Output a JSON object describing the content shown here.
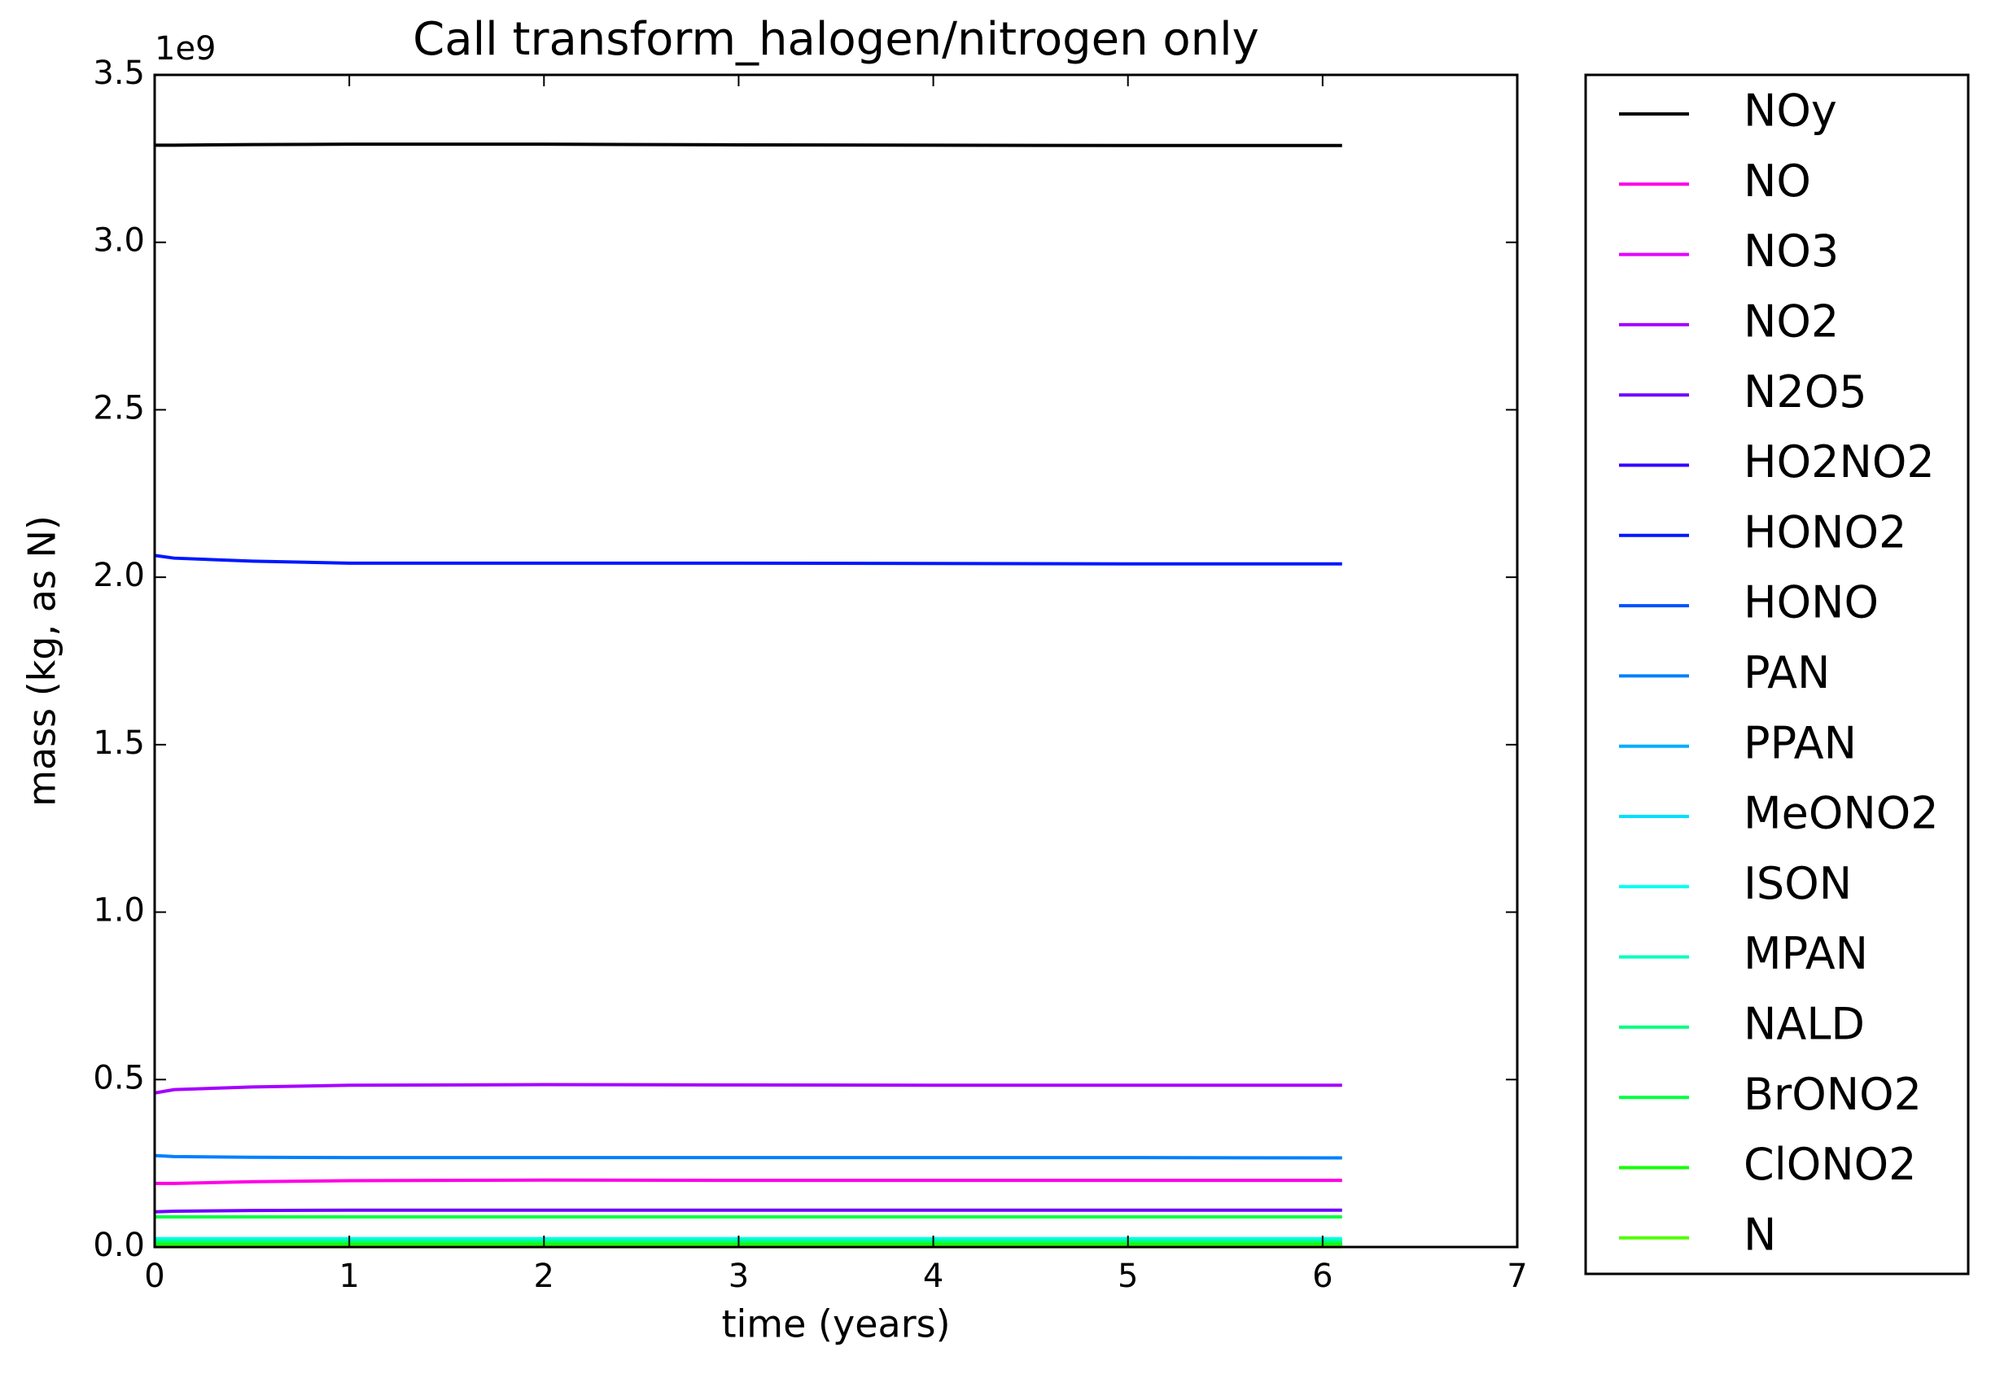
{
  "chart_data": {
    "type": "line",
    "title": "Call transform_halogen/nitrogen only",
    "x_label": "time (years)",
    "y_label": "mass (kg, as N)",
    "y_offset_label": "1e9",
    "xlim": [
      0,
      7
    ],
    "xticks": [
      0,
      1,
      2,
      3,
      4,
      5,
      6,
      7
    ],
    "ylim": [
      0,
      3.5
    ],
    "yticks": [
      {
        "value": 0,
        "label": "0.0"
      },
      0.5,
      {
        "value": 1,
        "label": "1.0"
      },
      1.5,
      {
        "value": 2,
        "label": "2.0"
      },
      2.5,
      {
        "value": 3,
        "label": "3.0"
      },
      3.5
    ],
    "x": [
      0,
      0.1,
      0.5,
      1,
      2,
      3,
      4,
      5,
      6.1
    ],
    "series": [
      {
        "name": "NOy",
        "color": "#000000",
        "values": [
          3.29,
          3.29,
          3.292,
          3.293,
          3.293,
          3.291,
          3.29,
          3.289,
          3.289
        ]
      },
      {
        "name": "NO",
        "color": "#ff00e6",
        "values": [
          0.19,
          0.19,
          0.195,
          0.198,
          0.2,
          0.199,
          0.199,
          0.199,
          0.199
        ]
      },
      {
        "name": "NO3",
        "color": "#e400ff",
        "values": [
          0.005,
          0.005,
          0.005,
          0.005,
          0.005,
          0.005,
          0.005,
          0.005,
          0.005
        ]
      },
      {
        "name": "NO2",
        "color": "#a600ff",
        "values": [
          0.46,
          0.47,
          0.478,
          0.483,
          0.485,
          0.484,
          0.483,
          0.483,
          0.483
        ]
      },
      {
        "name": "N2O5",
        "color": "#7000ff",
        "values": [
          0.105,
          0.107,
          0.109,
          0.11,
          0.11,
          0.11,
          0.11,
          0.11,
          0.11
        ]
      },
      {
        "name": "HO2NO2",
        "color": "#3400ff",
        "values": [
          0.01,
          0.01,
          0.01,
          0.01,
          0.01,
          0.01,
          0.01,
          0.01,
          0.01
        ]
      },
      {
        "name": "HONO2",
        "color": "#0018ff",
        "values": [
          2.065,
          2.057,
          2.048,
          2.042,
          2.042,
          2.042,
          2.041,
          2.04,
          2.04
        ]
      },
      {
        "name": "HONO",
        "color": "#0052ff",
        "values": [
          0.003,
          0.003,
          0.003,
          0.003,
          0.003,
          0.003,
          0.003,
          0.003,
          0.003
        ]
      },
      {
        "name": "PAN",
        "color": "#0080ff",
        "values": [
          0.273,
          0.27,
          0.268,
          0.267,
          0.267,
          0.267,
          0.267,
          0.267,
          0.266
        ]
      },
      {
        "name": "PPAN",
        "color": "#00aeff",
        "values": [
          0.012,
          0.012,
          0.012,
          0.012,
          0.012,
          0.012,
          0.012,
          0.012,
          0.012
        ]
      },
      {
        "name": "MeONO2",
        "color": "#00e0ff",
        "values": [
          0.002,
          0.002,
          0.002,
          0.002,
          0.002,
          0.002,
          0.002,
          0.002,
          0.002
        ]
      },
      {
        "name": "ISON",
        "color": "#00fff0",
        "values": [
          0.025,
          0.025,
          0.025,
          0.025,
          0.025,
          0.025,
          0.025,
          0.025,
          0.025
        ]
      },
      {
        "name": "MPAN",
        "color": "#00ffc0",
        "values": [
          0.02,
          0.02,
          0.02,
          0.02,
          0.02,
          0.02,
          0.02,
          0.02,
          0.02
        ]
      },
      {
        "name": "NALD",
        "color": "#00ff80",
        "values": [
          0.015,
          0.015,
          0.015,
          0.015,
          0.015,
          0.015,
          0.015,
          0.015,
          0.015
        ]
      },
      {
        "name": "BrONO2",
        "color": "#00ff40",
        "values": [
          0.09,
          0.09,
          0.09,
          0.09,
          0.09,
          0.09,
          0.09,
          0.09,
          0.09
        ]
      },
      {
        "name": "ClONO2",
        "color": "#14ff00",
        "values": [
          0.008,
          0.008,
          0.008,
          0.008,
          0.008,
          0.008,
          0.008,
          0.008,
          0.008
        ]
      },
      {
        "name": "N",
        "color": "#50ff00",
        "values": [
          0.001,
          0.001,
          0.001,
          0.001,
          0.001,
          0.001,
          0.001,
          0.001,
          0.001
        ]
      }
    ]
  }
}
